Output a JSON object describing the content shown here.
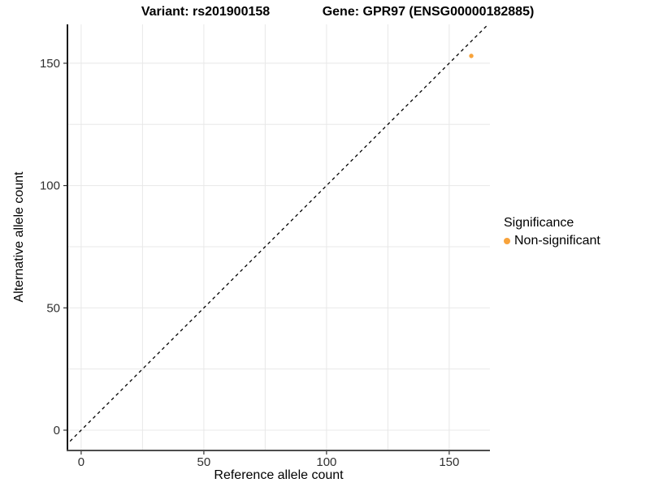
{
  "chart_data": {
    "type": "scatter",
    "title_left": "Variant: rs201900158",
    "title_right": "Gene: GPR97 (ENSG00000182885)",
    "xlabel": "Reference allele count",
    "ylabel": "Alternative allele count",
    "xlim": [
      -5.6,
      166.6
    ],
    "ylim": [
      -8.3,
      165.9
    ],
    "x_ticks": [
      0,
      50,
      100,
      150
    ],
    "y_ticks": [
      0,
      50,
      100,
      150
    ],
    "grid": {
      "step": 25,
      "min": 0,
      "max": 150,
      "color": "#E8E8E8",
      "visible": true
    },
    "identity_line": {
      "equation": "y = x",
      "style": "dashed",
      "color": "#000000"
    },
    "series": [
      {
        "name": "Non-significant",
        "color": "#F8A33B",
        "points": [
          {
            "x": 159,
            "y": 153
          }
        ]
      }
    ],
    "legend": {
      "title": "Significance",
      "position": "right",
      "entries": [
        {
          "label": "Non-significant",
          "color": "#F8A33B"
        }
      ]
    },
    "colors": {
      "axis_line": "#333333",
      "tick_label": "#303030",
      "point": "#F8A33B"
    }
  }
}
